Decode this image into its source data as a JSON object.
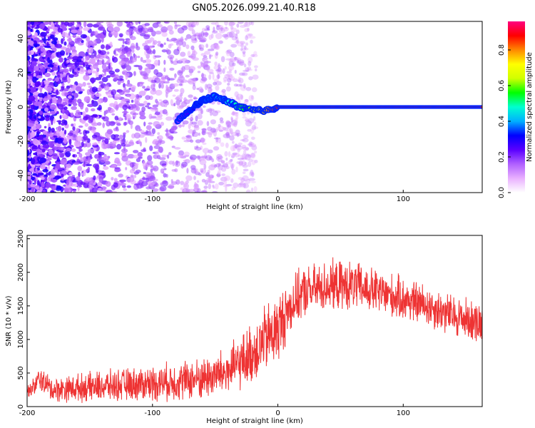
{
  "title": "GN05.2026.099.21.40.R18",
  "chart_data": [
    {
      "type": "heatmap",
      "xlabel": "Height of straight line (km)",
      "ylabel": "Frequency (Hz)",
      "xlim": [
        -200,
        163
      ],
      "ylim": [
        -50,
        50
      ],
      "xticks": [
        -200,
        -100,
        0,
        100
      ],
      "yticks": [
        -40,
        -20,
        0,
        20,
        40
      ],
      "colorbar": {
        "label": "Normalized spectral amplitude",
        "range": [
          0,
          0.96
        ],
        "ticks": [
          0.0,
          0.2,
          0.4,
          0.6,
          0.8
        ],
        "colors": [
          "#ffffff",
          "#e9b0ff",
          "#b060ff",
          "#5a00ff",
          "#0000ff",
          "#00b0ff",
          "#00ffd0",
          "#00ff00",
          "#d0ff00",
          "#ffff00",
          "#ff8800",
          "#ff0000",
          "#ff0080"
        ]
      },
      "series": [
        {
          "name": "noise",
          "x_range": [
            -200,
            -40
          ],
          "freq_range": [
            -50,
            50
          ],
          "amplitude": 0.15
        },
        {
          "name": "carrier",
          "x": [
            -80,
            -70,
            -60,
            -50,
            -40,
            -30,
            -20,
            -10,
            0,
            20,
            60,
            100,
            163
          ],
          "freq": [
            -8,
            -2,
            4,
            6,
            3,
            0,
            -2,
            -2,
            0,
            0,
            0,
            0,
            0
          ],
          "amplitude": [
            0.2,
            0.3,
            0.35,
            0.4,
            0.45,
            0.55,
            0.65,
            0.8,
            0.9,
            0.9,
            0.9,
            0.9,
            0.9
          ]
        }
      ]
    },
    {
      "type": "line",
      "xlabel": "Height of straight line (km)",
      "ylabel": "SNR (10 * v/v)",
      "xlim": [
        -200,
        163
      ],
      "ylim": [
        0,
        2550
      ],
      "xticks": [
        -200,
        -100,
        0,
        100
      ],
      "yticks": [
        0,
        500,
        1000,
        1500,
        2000,
        2500
      ],
      "color": "#ee3333",
      "series": [
        {
          "name": "SNR",
          "x": [
            -200,
            -195,
            -190,
            -180,
            -160,
            -140,
            -120,
            -100,
            -80,
            -60,
            -40,
            -30,
            -20,
            -10,
            0,
            10,
            20,
            40,
            60,
            80,
            100,
            120,
            140,
            163
          ],
          "y": [
            230,
            280,
            420,
            250,
            280,
            300,
            330,
            350,
            380,
            420,
            520,
            650,
            800,
            1000,
            1150,
            1500,
            1700,
            1800,
            1800,
            1700,
            1600,
            1500,
            1350,
            1250
          ],
          "spread": [
            60,
            120,
            150,
            150,
            170,
            190,
            200,
            220,
            240,
            260,
            300,
            330,
            380,
            420,
            450,
            330,
            310,
            310,
            300,
            280,
            270,
            260,
            260,
            260
          ]
        }
      ]
    }
  ]
}
